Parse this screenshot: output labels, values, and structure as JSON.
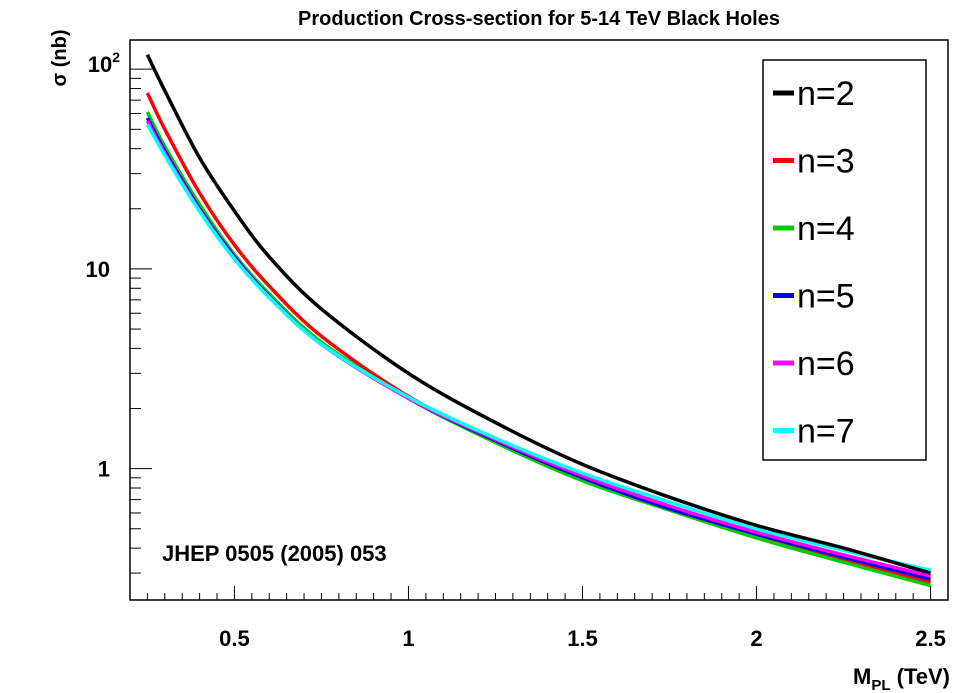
{
  "chart_data": {
    "type": "line",
    "title": "Production Cross-section for 5-14 TeV Black Holes",
    "xlabel_main": "M",
    "xlabel_sub": "PL",
    "xlabel_unit": " (TeV)",
    "ylabel": "σ (nb)",
    "annotation": "JHEP 0505 (2005) 053",
    "xlim": [
      0.2,
      2.55
    ],
    "ylim": [
      0.22,
      140
    ],
    "yscale": "log",
    "x_ticks": [
      {
        "value": 0.5,
        "label": "0.5"
      },
      {
        "value": 1,
        "label": "1"
      },
      {
        "value": 1.5,
        "label": "1.5"
      },
      {
        "value": 2,
        "label": "2"
      },
      {
        "value": 2.5,
        "label": "2.5"
      }
    ],
    "y_ticks": [
      {
        "value": 1,
        "label": "1"
      },
      {
        "value": 10,
        "label": "10"
      }
    ],
    "y_tick_top": {
      "value": 100,
      "base": "10",
      "exp": "2"
    },
    "legend_position": "top-right",
    "grid": false,
    "x": [
      0.25,
      0.3,
      0.4,
      0.5,
      0.6,
      0.75,
      1.0,
      1.25,
      1.5,
      1.75,
      2.0,
      2.25,
      2.5
    ],
    "series": [
      {
        "name": "n=2",
        "color": "#000000",
        "values": [
          118,
          78,
          36,
          19.5,
          11.5,
          6.3,
          3.0,
          1.7,
          1.05,
          0.72,
          0.52,
          0.4,
          0.3
        ]
      },
      {
        "name": "n=3",
        "color": "#ff0000",
        "values": [
          76,
          50,
          24,
          13.2,
          8.2,
          4.6,
          2.3,
          1.4,
          0.9,
          0.64,
          0.46,
          0.35,
          0.27
        ]
      },
      {
        "name": "n=4",
        "color": "#00cc00",
        "values": [
          61,
          41,
          21,
          11.8,
          7.5,
          4.3,
          2.25,
          1.35,
          0.87,
          0.62,
          0.45,
          0.34,
          0.26
        ]
      },
      {
        "name": "n=5",
        "color": "#0000ff",
        "values": [
          57,
          39,
          20,
          11.5,
          7.3,
          4.2,
          2.25,
          1.38,
          0.9,
          0.63,
          0.47,
          0.36,
          0.28
        ]
      },
      {
        "name": "n=6",
        "color": "#ff00ff",
        "values": [
          55,
          38,
          19.7,
          11.3,
          7.2,
          4.2,
          2.25,
          1.4,
          0.92,
          0.65,
          0.48,
          0.37,
          0.29
        ]
      },
      {
        "name": "n=7",
        "color": "#00ffff",
        "values": [
          53,
          37,
          19.4,
          11.2,
          7.2,
          4.2,
          2.28,
          1.42,
          0.95,
          0.68,
          0.5,
          0.39,
          0.31
        ]
      }
    ]
  }
}
